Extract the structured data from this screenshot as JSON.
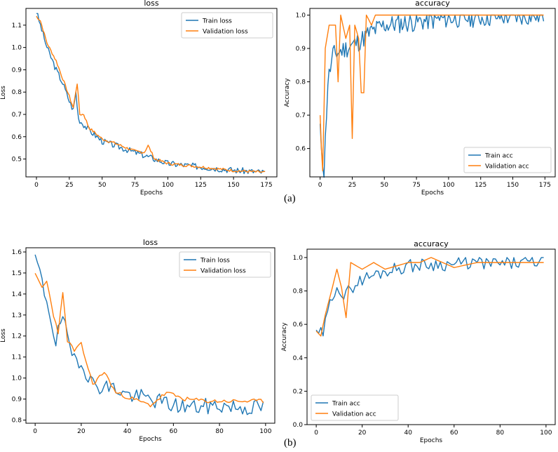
{
  "colors": {
    "train": "#1f77b4",
    "val": "#ff7f0e",
    "axis": "#000000"
  },
  "captions": [
    "(a)",
    "(b)"
  ],
  "chart_data": [
    {
      "id": "a-loss",
      "type": "line",
      "title": "loss",
      "xlabel": "Epochs",
      "ylabel": "Loss",
      "xlim": [
        -8,
        183
      ],
      "ylim": [
        0.42,
        1.175
      ],
      "xticks": [
        0,
        25,
        50,
        75,
        100,
        125,
        150,
        175
      ],
      "yticks": [
        0.5,
        0.6,
        0.7,
        0.8,
        0.9,
        1.0,
        1.1
      ],
      "legend": "top-right",
      "series": [
        {
          "name": "Train loss",
          "role": "train",
          "n": 175,
          "keys": [
            [
              0,
              1.16
            ],
            [
              3,
              1.1
            ],
            [
              8,
              1.0
            ],
            [
              15,
              0.9
            ],
            [
              20,
              0.84
            ],
            [
              25,
              0.76
            ],
            [
              28,
              0.72
            ],
            [
              30,
              0.8
            ],
            [
              32,
              0.68
            ],
            [
              35,
              0.66
            ],
            [
              40,
              0.63
            ],
            [
              50,
              0.58
            ],
            [
              60,
              0.56
            ],
            [
              75,
              0.53
            ],
            [
              100,
              0.48
            ],
            [
              125,
              0.465
            ],
            [
              150,
              0.45
            ],
            [
              174,
              0.44
            ]
          ],
          "noise": 0.014,
          "seed": 3
        },
        {
          "name": "Validation loss",
          "role": "val",
          "n": 175,
          "keys": [
            [
              0,
              1.14
            ],
            [
              3,
              1.12
            ],
            [
              8,
              1.02
            ],
            [
              15,
              0.94
            ],
            [
              20,
              0.86
            ],
            [
              25,
              0.78
            ],
            [
              28,
              0.73
            ],
            [
              31,
              0.84
            ],
            [
              33,
              0.7
            ],
            [
              36,
              0.7
            ],
            [
              40,
              0.64
            ],
            [
              50,
              0.59
            ],
            [
              60,
              0.57
            ],
            [
              75,
              0.535
            ],
            [
              82,
              0.53
            ],
            [
              85,
              0.56
            ],
            [
              90,
              0.5
            ],
            [
              100,
              0.48
            ],
            [
              125,
              0.465
            ],
            [
              150,
              0.448
            ],
            [
              174,
              0.44
            ]
          ],
          "noise": 0.006,
          "seed": 7
        }
      ]
    },
    {
      "id": "a-acc",
      "type": "line",
      "title": "accuracy",
      "xlabel": "Epochs",
      "ylabel": "Accuracy",
      "xlim": [
        -8,
        183
      ],
      "ylim": [
        0.515,
        1.02
      ],
      "xticks": [
        0,
        25,
        50,
        75,
        100,
        125,
        150,
        175
      ],
      "yticks": [
        0.6,
        0.7,
        0.8,
        0.9,
        1.0
      ],
      "legend": "bottom-right",
      "series": [
        {
          "name": "Train acc",
          "role": "train",
          "n": 175,
          "keys": [
            [
              0,
              0.65
            ],
            [
              3,
              0.53
            ],
            [
              6,
              0.8
            ],
            [
              10,
              0.88
            ],
            [
              20,
              0.9
            ],
            [
              30,
              0.92
            ],
            [
              40,
              0.95
            ],
            [
              50,
              0.97
            ],
            [
              75,
              0.98
            ],
            [
              100,
              0.99
            ],
            [
              174,
              1.0
            ]
          ],
          "noise": 0.03,
          "seed": 11,
          "clampMax": 1.0
        },
        {
          "name": "Validation acc",
          "role": "val",
          "n": 175,
          "keys": [
            [
              0,
              0.7
            ],
            [
              1,
              0.6
            ],
            [
              2,
              0.533
            ],
            [
              4,
              0.9
            ],
            [
              7,
              0.97
            ],
            [
              12,
              0.97
            ],
            [
              14,
              0.8
            ],
            [
              16,
              1.0
            ],
            [
              20,
              0.93
            ],
            [
              23,
              0.97
            ],
            [
              25,
              0.63
            ],
            [
              27,
              0.97
            ],
            [
              30,
              0.93
            ],
            [
              32,
              0.767
            ],
            [
              34,
              0.767
            ],
            [
              36,
              1.0
            ],
            [
              40,
              0.97
            ],
            [
              43,
              1.0
            ],
            [
              174,
              1.0
            ]
          ],
          "noise": 0.0,
          "seed": 5
        }
      ]
    },
    {
      "id": "b-loss",
      "type": "line",
      "title": "loss",
      "xlabel": "Epochs",
      "ylabel": "Loss",
      "xlim": [
        -4,
        104
      ],
      "ylim": [
        0.785,
        1.62
      ],
      "xticks": [
        0,
        20,
        40,
        60,
        80,
        100
      ],
      "yticks": [
        0.8,
        0.9,
        1.0,
        1.1,
        1.2,
        1.3,
        1.4,
        1.5,
        1.6
      ],
      "legend": "top-right",
      "series": [
        {
          "name": "Train loss",
          "role": "train",
          "n": 100,
          "keys": [
            [
              0,
              1.58
            ],
            [
              3,
              1.45
            ],
            [
              6,
              1.33
            ],
            [
              9,
              1.17
            ],
            [
              12,
              1.3
            ],
            [
              15,
              1.12
            ],
            [
              20,
              1.08
            ],
            [
              25,
              0.97
            ],
            [
              30,
              0.96
            ],
            [
              35,
              0.95
            ],
            [
              40,
              0.92
            ],
            [
              50,
              0.9
            ],
            [
              60,
              0.87
            ],
            [
              70,
              0.86
            ],
            [
              80,
              0.87
            ],
            [
              90,
              0.86
            ],
            [
              99,
              0.86
            ]
          ],
          "noise": 0.04,
          "seed": 19
        },
        {
          "name": "Validation loss",
          "role": "val",
          "n": 100,
          "keys": [
            [
              0,
              1.49
            ],
            [
              3,
              1.43
            ],
            [
              5,
              1.46
            ],
            [
              8,
              1.3
            ],
            [
              10,
              1.22
            ],
            [
              12,
              1.4
            ],
            [
              14,
              1.18
            ],
            [
              17,
              1.13
            ],
            [
              20,
              1.16
            ],
            [
              25,
              0.97
            ],
            [
              30,
              1.03
            ],
            [
              35,
              0.93
            ],
            [
              45,
              0.89
            ],
            [
              50,
              0.87
            ],
            [
              57,
              0.93
            ],
            [
              65,
              0.9
            ],
            [
              75,
              0.89
            ],
            [
              99,
              0.89
            ]
          ],
          "noise": 0.01,
          "seed": 23
        }
      ]
    },
    {
      "id": "b-acc",
      "type": "line",
      "title": "accuracy",
      "xlabel": "Epochs",
      "ylabel": "Accuracy",
      "xlim": [
        -4,
        104
      ],
      "ylim": [
        0.0,
        1.05
      ],
      "xticks": [
        0,
        20,
        40,
        60,
        80,
        100
      ],
      "yticks": [
        0.0,
        0.2,
        0.4,
        0.6,
        0.8,
        1.0
      ],
      "legend": "bottom-left",
      "series": [
        {
          "name": "Train acc",
          "role": "train",
          "n": 100,
          "keys": [
            [
              0,
              0.53
            ],
            [
              3,
              0.55
            ],
            [
              6,
              0.72
            ],
            [
              9,
              0.85
            ],
            [
              12,
              0.75
            ],
            [
              15,
              0.82
            ],
            [
              20,
              0.87
            ],
            [
              30,
              0.92
            ],
            [
              40,
              0.95
            ],
            [
              50,
              0.96
            ],
            [
              60,
              0.96
            ],
            [
              70,
              0.97
            ],
            [
              80,
              0.96
            ],
            [
              90,
              0.97
            ],
            [
              99,
              0.98
            ]
          ],
          "noise": 0.04,
          "seed": 29,
          "clampMax": 1.0
        },
        {
          "name": "Validation acc",
          "role": "val",
          "n": 100,
          "keys": [
            [
              0,
              0.56
            ],
            [
              2,
              0.53
            ],
            [
              4,
              0.66
            ],
            [
              7,
              0.82
            ],
            [
              9,
              0.93
            ],
            [
              11,
              0.82
            ],
            [
              13,
              0.64
            ],
            [
              15,
              0.97
            ],
            [
              20,
              0.93
            ],
            [
              25,
              0.97
            ],
            [
              30,
              0.93
            ],
            [
              40,
              0.97
            ],
            [
              45,
              0.97
            ],
            [
              50,
              1.0
            ],
            [
              55,
              0.97
            ],
            [
              60,
              0.94
            ],
            [
              70,
              0.97
            ],
            [
              80,
              0.97
            ],
            [
              99,
              0.97
            ]
          ],
          "noise": 0.0,
          "seed": 31
        }
      ]
    }
  ]
}
